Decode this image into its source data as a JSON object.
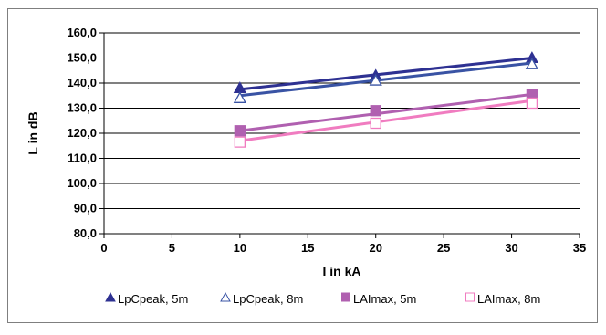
{
  "chart_data": {
    "type": "line",
    "xlabel": "I in kA",
    "ylabel": "L in dB",
    "xlim": [
      0,
      35
    ],
    "ylim": [
      80,
      160
    ],
    "xticks": [
      0,
      5,
      10,
      15,
      20,
      25,
      30,
      35
    ],
    "yticks": [
      80,
      90,
      100,
      110,
      120,
      130,
      140,
      150,
      160
    ],
    "yticklabels": [
      "80,0",
      "90,0",
      "100,0",
      "110,0",
      "120,0",
      "130,0",
      "140,0",
      "150,0",
      "160,0"
    ],
    "grid": true,
    "legend_position": "bottom",
    "series": [
      {
        "name": "LpCpeak, 5m",
        "marker": "triangle-filled",
        "color": "#2e3192",
        "points": [
          [
            10,
            138
          ],
          [
            20,
            143
          ],
          [
            31.5,
            150
          ]
        ],
        "trend": [
          [
            10,
            137.5
          ],
          [
            31.5,
            150
          ]
        ]
      },
      {
        "name": "LpCpeak, 8m",
        "marker": "triangle-open",
        "color": "#3953a4",
        "points": [
          [
            10,
            134
          ],
          [
            20,
            141
          ],
          [
            31.5,
            147.5
          ]
        ],
        "trend": [
          [
            10,
            135
          ],
          [
            31.5,
            148
          ]
        ]
      },
      {
        "name": "LAImax, 5m",
        "marker": "square-filled",
        "color": "#b060b0",
        "points": [
          [
            10,
            121
          ],
          [
            20,
            129
          ],
          [
            31.5,
            135.5
          ]
        ],
        "trend": [
          [
            10,
            121
          ],
          [
            31.5,
            135.5
          ]
        ]
      },
      {
        "name": "LAImax, 8m",
        "marker": "square-open",
        "color": "#f07cc0",
        "points": [
          [
            10,
            116.5
          ],
          [
            20,
            124
          ],
          [
            31.5,
            132
          ]
        ],
        "trend": [
          [
            10,
            117
          ],
          [
            31.5,
            133
          ]
        ]
      }
    ]
  }
}
